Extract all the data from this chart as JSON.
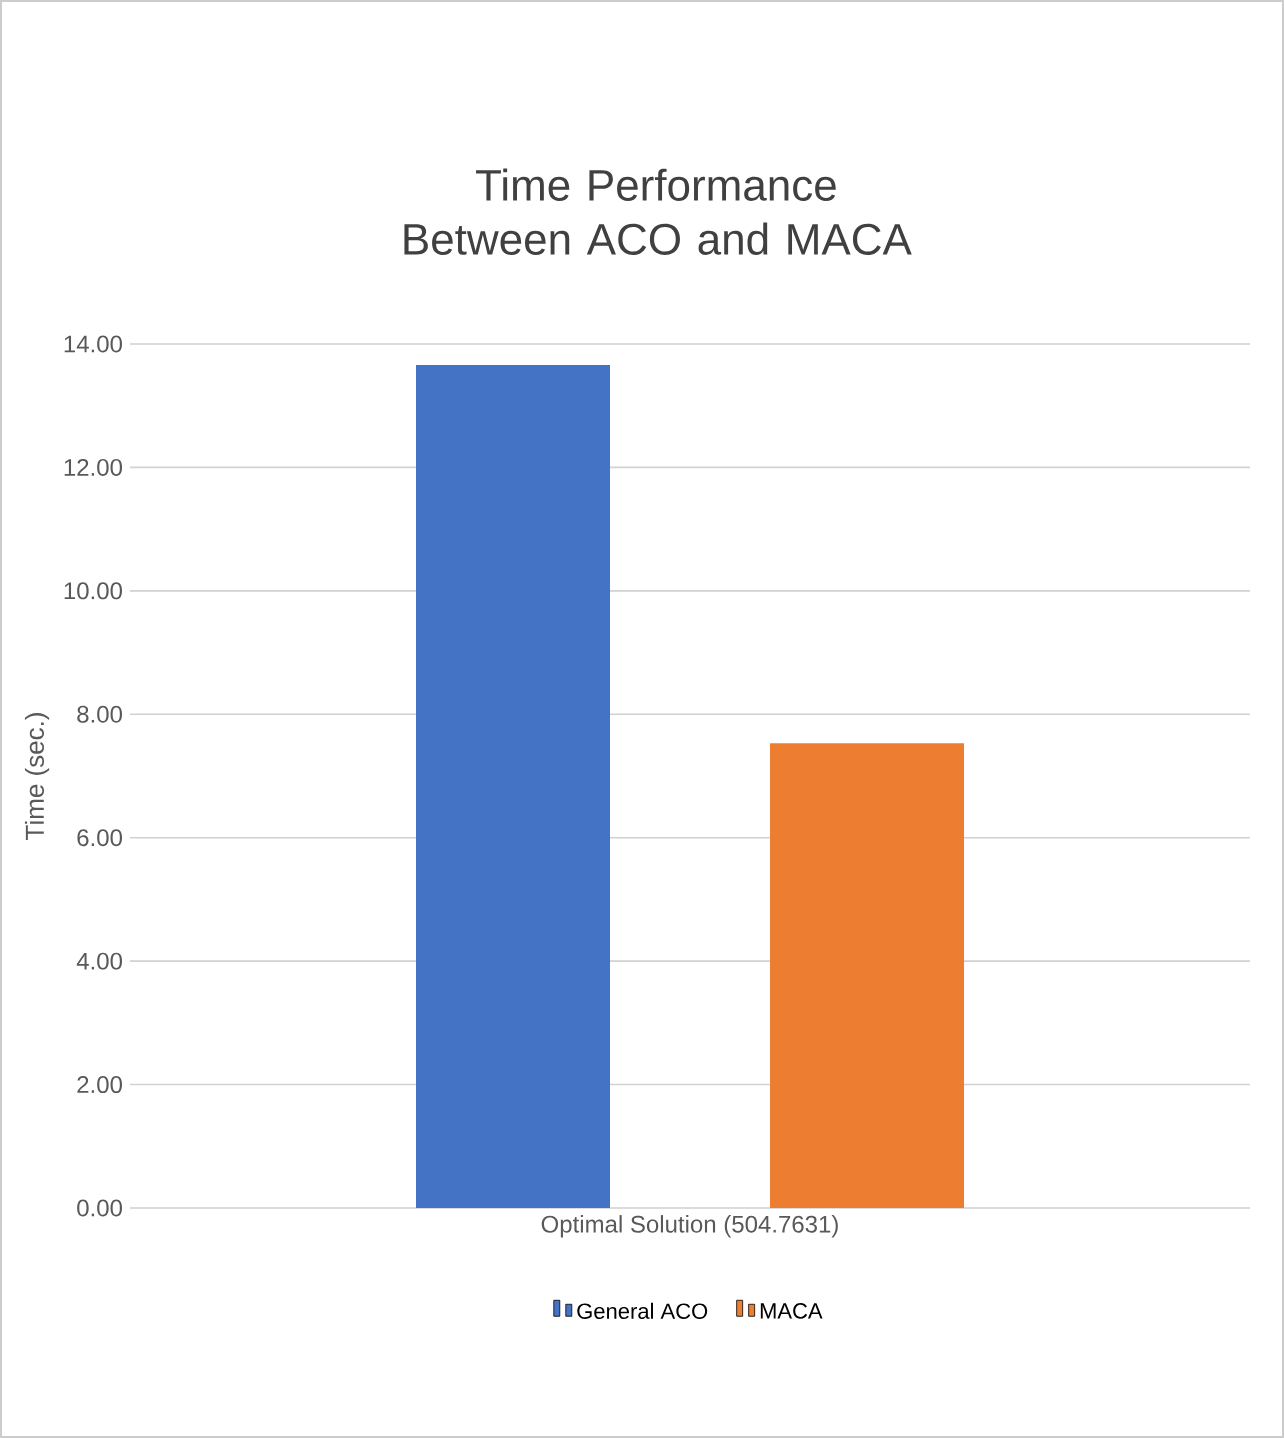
{
  "chart_data": {
    "type": "bar",
    "title": "Time Performance Between ACO and MACA",
    "ylabel": "Time (sec.)",
    "categories": [
      "Optimal Solution (504.7631)"
    ],
    "series": [
      {
        "name": "General ACO",
        "color": "#4472c4",
        "values": [
          13.66
        ]
      },
      {
        "name": "MACA",
        "color": "#ed7d31",
        "values": [
          7.53
        ]
      }
    ],
    "ylim": [
      0,
      14
    ],
    "yticks": [
      {
        "value": 0,
        "label": "0.00"
      },
      {
        "value": 2,
        "label": "2.00"
      },
      {
        "value": 4,
        "label": "4.00"
      },
      {
        "value": 6,
        "label": "6.00"
      },
      {
        "value": 8,
        "label": "8.00"
      },
      {
        "value": 10,
        "label": "10.00"
      },
      {
        "value": 12,
        "label": "12.00"
      },
      {
        "value": 14,
        "label": "14.00"
      }
    ],
    "grid": "y",
    "legend": "bottom"
  }
}
